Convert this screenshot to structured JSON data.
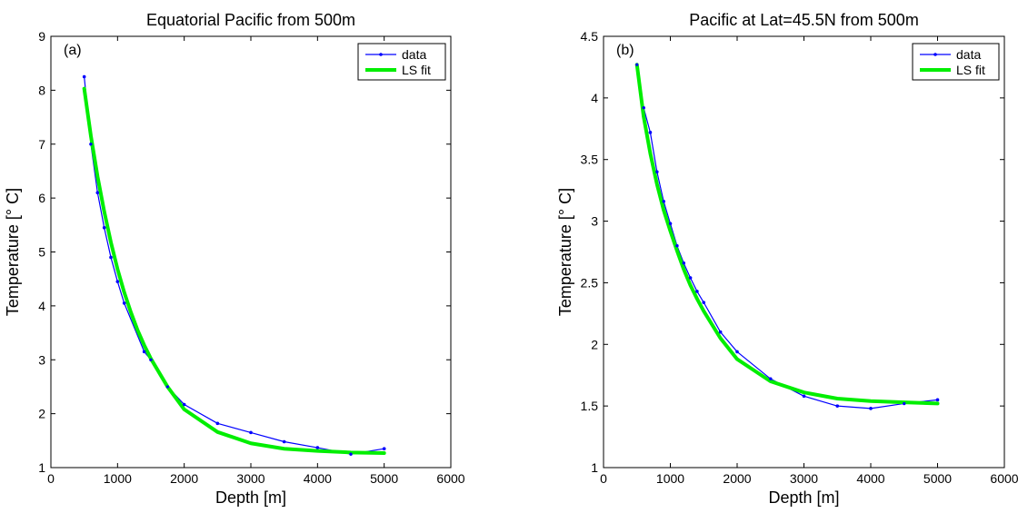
{
  "chart_data": [
    {
      "type": "line",
      "title": "Equatorial Pacific from 500m",
      "panel_label": "(a)",
      "xlabel": "Depth [m]",
      "ylabel": "Temperature [° C]",
      "xlim": [
        0,
        6000
      ],
      "ylim": [
        1,
        9
      ],
      "xticks": [
        0,
        1000,
        2000,
        3000,
        4000,
        5000,
        6000
      ],
      "yticks": [
        1,
        2,
        3,
        4,
        5,
        6,
        7,
        8,
        9
      ],
      "legend_position": "top-right",
      "grid": false,
      "series": [
        {
          "name": "data",
          "color": "#0000ff",
          "marker": "dot",
          "x": [
            500,
            600,
            700,
            800,
            900,
            1000,
            1100,
            1400,
            1500,
            1750,
            2000,
            2500,
            3000,
            3500,
            4000,
            4500,
            5000
          ],
          "y": [
            8.25,
            7.0,
            6.1,
            5.45,
            4.9,
            4.45,
            4.05,
            3.15,
            3.0,
            2.5,
            2.17,
            1.82,
            1.65,
            1.48,
            1.37,
            1.25,
            1.35
          ]
        },
        {
          "name": "LS fit",
          "color": "#00ee00",
          "marker": "none",
          "x": [
            500,
            600,
            700,
            800,
            900,
            1000,
            1100,
            1200,
            1300,
            1400,
            1500,
            1750,
            2000,
            2500,
            3000,
            3500,
            4000,
            4500,
            5000
          ],
          "y": [
            8.03,
            7.15,
            6.4,
            5.75,
            5.18,
            4.68,
            4.25,
            3.88,
            3.55,
            3.27,
            3.02,
            2.5,
            2.08,
            1.66,
            1.45,
            1.35,
            1.31,
            1.28,
            1.27
          ]
        }
      ]
    },
    {
      "type": "line",
      "title": "Pacific at Lat=45.5N from 500m",
      "panel_label": "(b)",
      "xlabel": "Depth [m]",
      "ylabel": "Temperature [° C]",
      "xlim": [
        0,
        6000
      ],
      "ylim": [
        1,
        4.5
      ],
      "xticks": [
        0,
        1000,
        2000,
        3000,
        4000,
        5000,
        6000
      ],
      "yticks": [
        1,
        1.5,
        2,
        2.5,
        3,
        3.5,
        4,
        4.5
      ],
      "legend_position": "top-right",
      "grid": false,
      "series": [
        {
          "name": "data",
          "color": "#0000ff",
          "marker": "dot",
          "x": [
            500,
            600,
            700,
            800,
            900,
            1000,
            1100,
            1200,
            1300,
            1400,
            1500,
            1750,
            2000,
            2500,
            3000,
            3500,
            4000,
            4500,
            5000
          ],
          "y": [
            4.27,
            3.92,
            3.72,
            3.4,
            3.16,
            2.98,
            2.8,
            2.66,
            2.54,
            2.43,
            2.34,
            2.1,
            1.94,
            1.72,
            1.58,
            1.5,
            1.48,
            1.52,
            1.55
          ]
        },
        {
          "name": "LS fit",
          "color": "#00ee00",
          "marker": "none",
          "x": [
            500,
            600,
            700,
            800,
            900,
            1000,
            1100,
            1200,
            1300,
            1400,
            1500,
            1750,
            2000,
            2500,
            3000,
            3500,
            4000,
            4500,
            5000
          ],
          "y": [
            4.27,
            3.85,
            3.55,
            3.3,
            3.09,
            2.92,
            2.76,
            2.61,
            2.48,
            2.37,
            2.27,
            2.05,
            1.88,
            1.7,
            1.61,
            1.56,
            1.54,
            1.53,
            1.52
          ]
        }
      ]
    }
  ]
}
